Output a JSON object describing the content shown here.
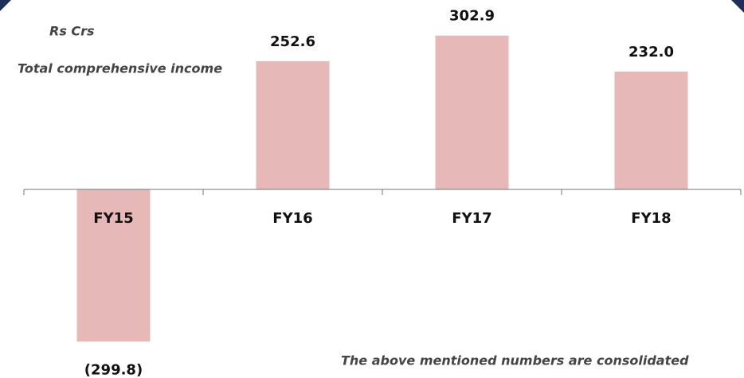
{
  "chart_data": {
    "type": "bar",
    "unit_label": "Rs Crs",
    "title": "Total comprehensive income",
    "footnote": "The above mentioned numbers are consolidated",
    "categories": [
      "FY15",
      "FY16",
      "FY17",
      "FY18"
    ],
    "values": [
      -299.8,
      252.6,
      302.9,
      232.0
    ],
    "value_labels": [
      "(299.8)",
      "252.6",
      "302.9",
      "232.0"
    ],
    "color": "#e6b8b7"
  }
}
